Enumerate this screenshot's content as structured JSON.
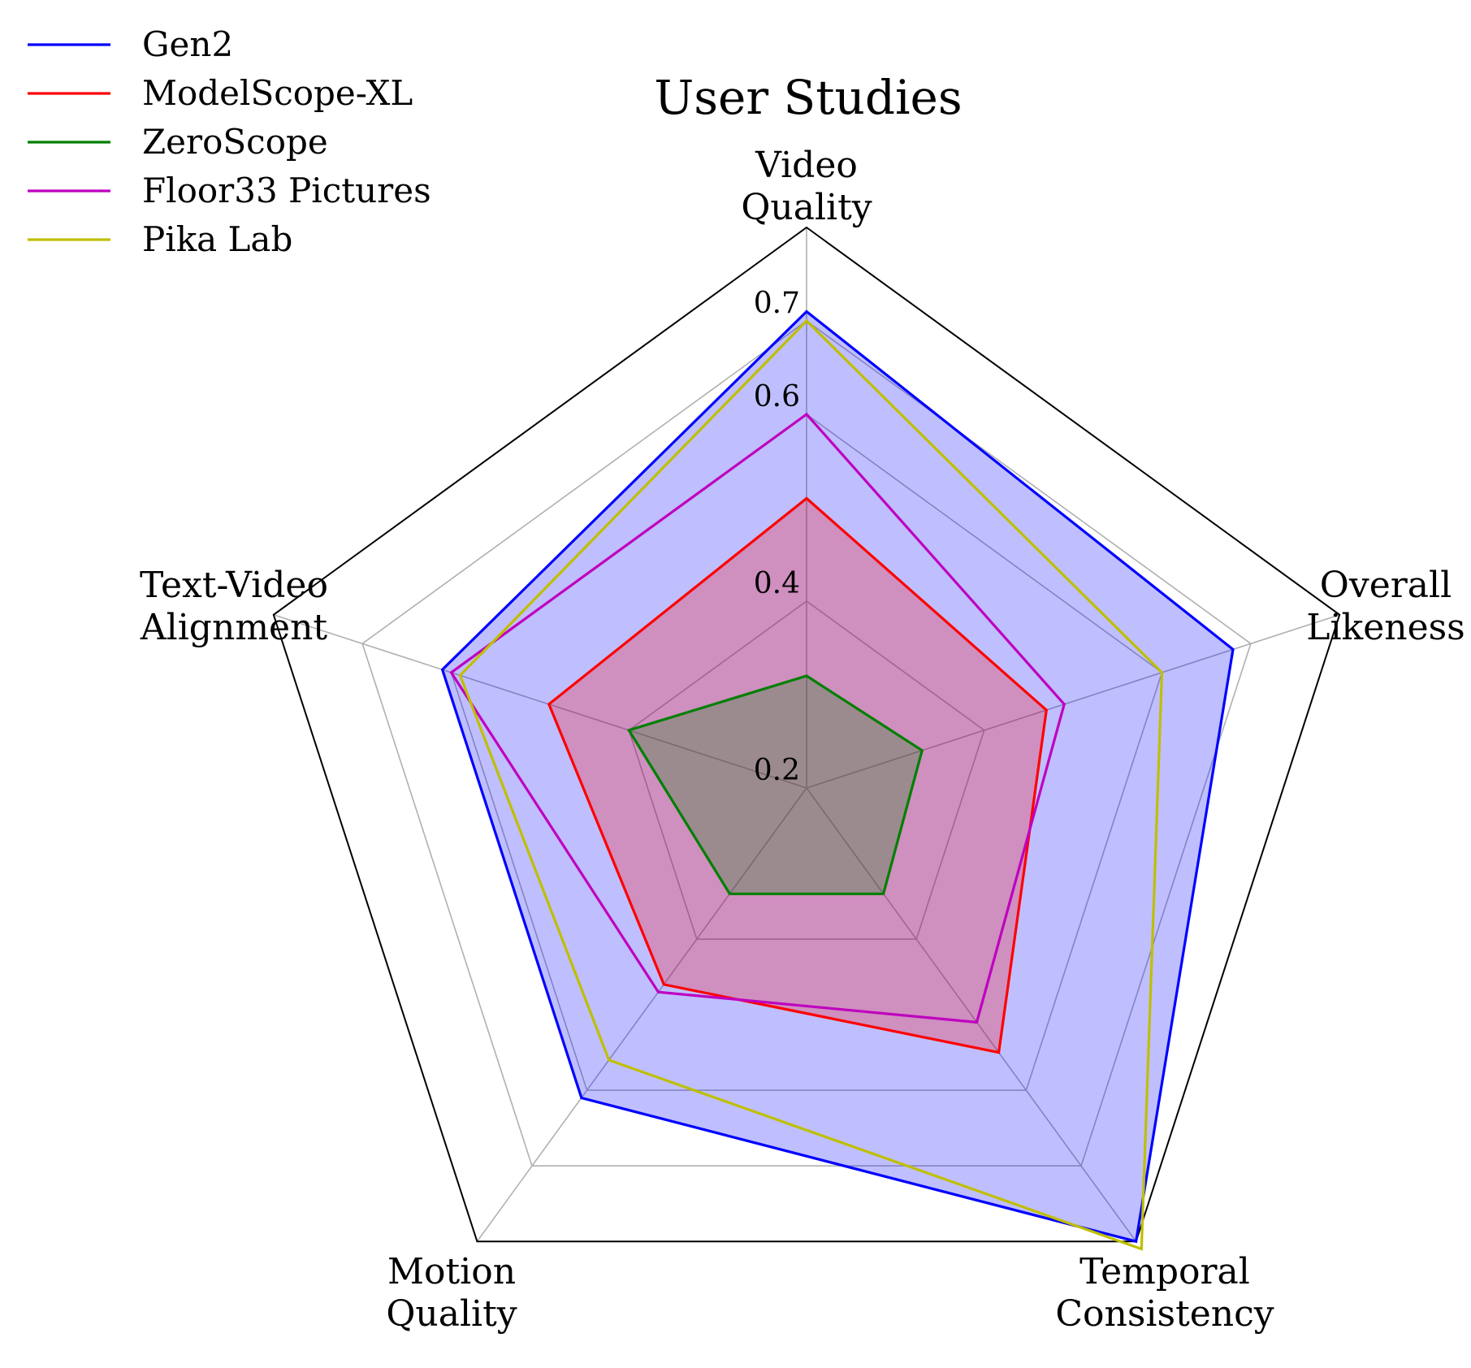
{
  "chart_data": {
    "type": "radar",
    "title": "User Studies",
    "axes": [
      "Video Quality",
      "Overall Likeness",
      "Temporal Consistency",
      "Motion Quality",
      "Text-Video Alignment"
    ],
    "axis_label_lines": [
      [
        "Video",
        "Quality"
      ],
      [
        "Overall",
        "Likeness"
      ],
      [
        "Temporal",
        "Consistency"
      ],
      [
        "Motion",
        "Quality"
      ],
      [
        "Text-Video",
        "Alignment"
      ]
    ],
    "rlim": [
      0.2,
      0.8
    ],
    "rgrid": [
      0.2,
      0.4,
      0.6,
      0.7
    ],
    "tick_labels": [
      "0.2",
      "0.4",
      "0.6",
      "0.7"
    ],
    "grid": true,
    "legend_position": "top-left",
    "series": [
      {
        "name": "Gen2",
        "color": "#0000ff",
        "filled": true,
        "values": [
          0.71,
          0.68,
          0.8,
          0.61,
          0.61
        ]
      },
      {
        "name": "ModelScope-XL",
        "color": "#ff0000",
        "filled": true,
        "values": [
          0.51,
          0.47,
          0.55,
          0.46,
          0.49
        ]
      },
      {
        "name": "ZeroScope",
        "color": "#007f00",
        "filled": true,
        "values": [
          0.32,
          0.33,
          0.34,
          0.34,
          0.4
        ]
      },
      {
        "name": "Floor33 Pictures",
        "color": "#bf00bf",
        "filled": false,
        "values": [
          0.6,
          0.49,
          0.51,
          0.47,
          0.6
        ]
      },
      {
        "name": "Pika Lab",
        "color": "#bfbf00",
        "filled": false,
        "values": [
          0.7,
          0.6,
          0.81,
          0.56,
          0.59
        ]
      }
    ]
  }
}
